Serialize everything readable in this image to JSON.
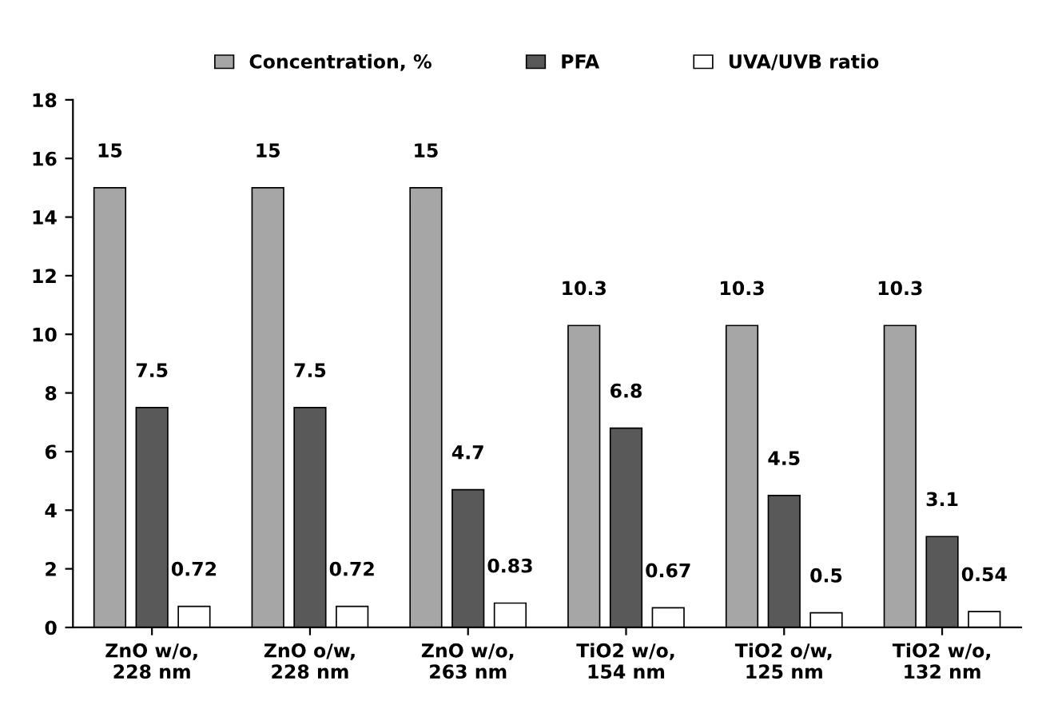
{
  "chart_data": {
    "type": "bar",
    "categories": [
      "ZnO w/o,\n228 nm",
      "ZnO o/w,\n228 nm",
      "ZnO w/o,\n263 nm",
      "TiO2 w/o,\n154 nm",
      "TiO2 o/w,\n125 nm",
      "TiO2 w/o,\n132 nm"
    ],
    "series": [
      {
        "name": "Concentration, %",
        "color": "#a6a6a6",
        "values": [
          15,
          15,
          15,
          10.3,
          10.3,
          10.3
        ]
      },
      {
        "name": "PFA",
        "color": "#595959",
        "values": [
          7.5,
          7.5,
          4.7,
          6.8,
          4.5,
          3.1
        ]
      },
      {
        "name": "UVA/UVB ratio",
        "color": "#ffffff",
        "values": [
          0.72,
          0.72,
          0.83,
          0.67,
          0.5,
          0.54
        ]
      }
    ],
    "ylim": [
      0,
      18
    ],
    "yticks": [
      0,
      2,
      4,
      6,
      8,
      10,
      12,
      14,
      16,
      18
    ],
    "data_labels": true,
    "legend": "top",
    "grid": false
  }
}
